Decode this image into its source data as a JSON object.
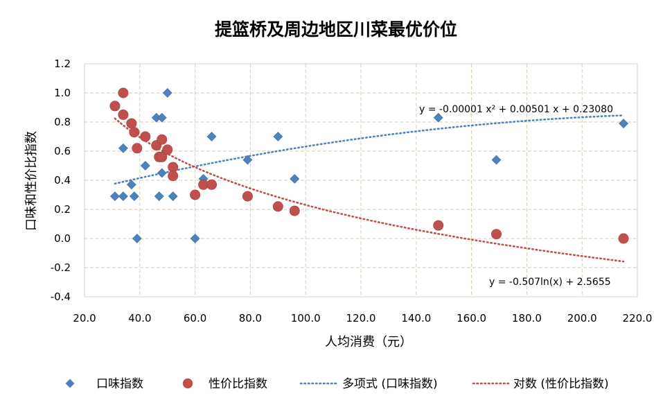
{
  "chart_data": {
    "type": "scatter",
    "title": "提篮桥及周边地区川菜最优价位",
    "xlabel": "人均消费（元）",
    "ylabel": "口味和性价比指数",
    "xlim": [
      20,
      220
    ],
    "ylim": [
      -0.4,
      1.2
    ],
    "x_ticks": [
      "20.0",
      "40.0",
      "60.0",
      "80.0",
      "100.0",
      "120.0",
      "140.0",
      "160.0",
      "180.0",
      "200.0",
      "220.0"
    ],
    "y_ticks": [
      "-0.4",
      "-0.2",
      "0.0",
      "0.2",
      "0.4",
      "0.6",
      "0.8",
      "1.0",
      "1.2"
    ],
    "grid": true,
    "legend_position": "bottom",
    "series": [
      {
        "name": "口味指数",
        "marker": "diamond",
        "color": "#4f81bd",
        "points": [
          [
            31,
            0.29
          ],
          [
            34,
            0.62
          ],
          [
            34,
            0.29
          ],
          [
            37,
            0.37
          ],
          [
            38,
            0.29
          ],
          [
            39,
            0.0
          ],
          [
            42,
            0.5
          ],
          [
            46,
            0.83
          ],
          [
            47,
            0.29
          ],
          [
            48,
            0.83
          ],
          [
            48,
            0.45
          ],
          [
            50,
            1.0
          ],
          [
            52,
            0.29
          ],
          [
            60,
            0.0
          ],
          [
            63,
            0.41
          ],
          [
            66,
            0.7
          ],
          [
            79,
            0.54
          ],
          [
            90,
            0.7
          ],
          [
            96,
            0.41
          ],
          [
            148,
            0.83
          ],
          [
            169,
            0.54
          ],
          [
            215,
            0.79
          ]
        ]
      },
      {
        "name": "性价比指数",
        "marker": "circle",
        "color": "#c0504d",
        "points": [
          [
            31,
            0.91
          ],
          [
            34,
            1.0
          ],
          [
            34,
            0.85
          ],
          [
            37,
            0.79
          ],
          [
            38,
            0.73
          ],
          [
            39,
            0.62
          ],
          [
            42,
            0.7
          ],
          [
            46,
            0.64
          ],
          [
            47,
            0.56
          ],
          [
            48,
            0.68
          ],
          [
            48,
            0.56
          ],
          [
            50,
            0.61
          ],
          [
            52,
            0.49
          ],
          [
            52,
            0.43
          ],
          [
            60,
            0.3
          ],
          [
            63,
            0.37
          ],
          [
            66,
            0.37
          ],
          [
            79,
            0.29
          ],
          [
            90,
            0.22
          ],
          [
            96,
            0.19
          ],
          [
            148,
            0.09
          ],
          [
            169,
            0.03
          ],
          [
            215,
            0.0
          ]
        ]
      }
    ],
    "trendlines": [
      {
        "name": "多项式 (口味指数)",
        "kind": "polynomial",
        "coefficients": [
          -1e-05,
          0.00501,
          0.2308
        ],
        "x_range": [
          31,
          215
        ],
        "color": "#4f81bd",
        "equation": "y = -0.00001 x² + 0.00501 x + 0.23080"
      },
      {
        "name": "对数 (性价比指数)",
        "kind": "logarithmic",
        "coefficients": [
          -0.507,
          2.5655
        ],
        "x_range": [
          31,
          215
        ],
        "color": "#c0504d",
        "equation": "y = -0.507ln(x) + 2.5655"
      }
    ]
  }
}
